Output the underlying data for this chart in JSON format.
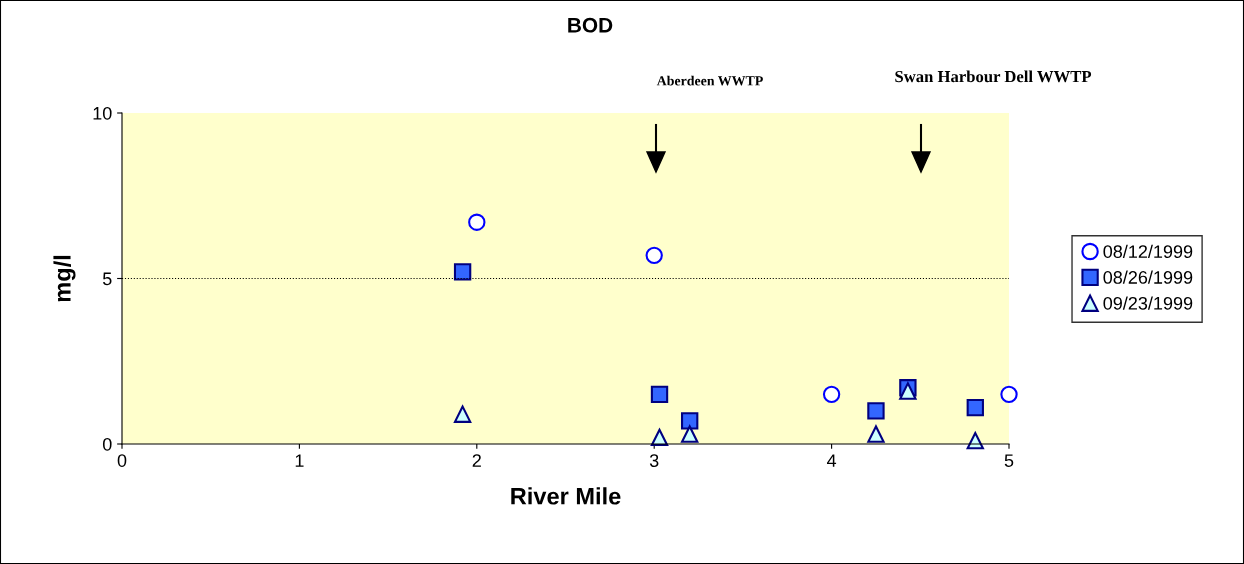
{
  "chart_data": {
    "type": "scatter",
    "title": "BOD",
    "xlabel": "River Mile",
    "ylabel": "mg/l",
    "xlim": [
      0,
      5
    ],
    "xticks": [
      0,
      1,
      2,
      3,
      4,
      5
    ],
    "ylim": [
      0,
      10
    ],
    "yticks": [
      0,
      5,
      10
    ],
    "grid": false,
    "legend": "right",
    "ref_lines": [
      {
        "axis": "y",
        "value": 5,
        "line_style": "dotted",
        "color": "#000000"
      }
    ],
    "annotations": [
      "Aberdeen WWTP",
      "Swan Harbour Dell WWTP"
    ],
    "series": [
      {
        "name": "08/12/1999",
        "marker": "circle",
        "color": "#0000ff",
        "x": [
          2.0,
          3.0,
          4.0,
          5.0
        ],
        "values": [
          6.7,
          5.7,
          1.5,
          1.5
        ]
      },
      {
        "name": "08/26/1999",
        "marker": "square",
        "color": "#3366ff",
        "x": [
          1.92,
          3.03,
          3.2,
          4.25,
          4.43,
          4.81
        ],
        "values": [
          5.2,
          1.5,
          0.7,
          1.0,
          1.7,
          1.1
        ]
      },
      {
        "name": "09/23/1999",
        "marker": "triangle",
        "color": "#ccffff",
        "x": [
          1.92,
          3.03,
          3.2,
          4.25,
          4.43,
          4.81
        ],
        "values": [
          0.9,
          0.2,
          0.3,
          0.3,
          1.6,
          0.1
        ]
      }
    ]
  }
}
